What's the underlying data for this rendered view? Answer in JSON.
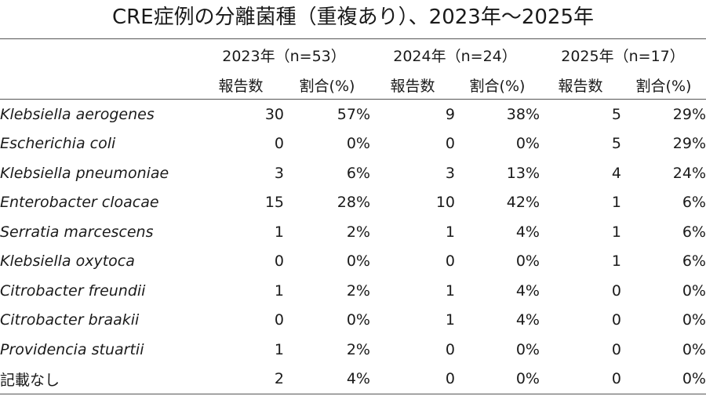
{
  "title": "CRE症例の分離菌種（重複あり）、2023年～2025年",
  "table": {
    "years": [
      {
        "label": "2023年（n=53）"
      },
      {
        "label": "2024年（n=24）"
      },
      {
        "label": "2025年（n=17）"
      }
    ],
    "subheaders": {
      "count": "報告数",
      "ratio": "割合(%)"
    },
    "rows": [
      {
        "organism": "Klebsiella aerogenes",
        "italic": true,
        "values": [
          "30",
          "57%",
          "9",
          "38%",
          "5",
          "29%"
        ]
      },
      {
        "organism": "Escherichia coli",
        "italic": true,
        "values": [
          "0",
          "0%",
          "0",
          "0%",
          "5",
          "29%"
        ]
      },
      {
        "organism": "Klebsiella pneumoniae",
        "italic": true,
        "values": [
          "3",
          "6%",
          "3",
          "13%",
          "4",
          "24%"
        ]
      },
      {
        "organism": "Enterobacter cloacae",
        "italic": true,
        "values": [
          "15",
          "28%",
          "10",
          "42%",
          "1",
          "6%"
        ]
      },
      {
        "organism": "Serratia marcescens",
        "italic": true,
        "values": [
          "1",
          "2%",
          "1",
          "4%",
          "1",
          "6%"
        ]
      },
      {
        "organism": "Klebsiella oxytoca",
        "italic": true,
        "values": [
          "0",
          "0%",
          "0",
          "0%",
          "1",
          "6%"
        ]
      },
      {
        "organism": "Citrobacter freundii",
        "italic": true,
        "values": [
          "1",
          "2%",
          "1",
          "4%",
          "0",
          "0%"
        ]
      },
      {
        "organism": "Citrobacter braakii",
        "italic": true,
        "values": [
          "0",
          "0%",
          "1",
          "4%",
          "0",
          "0%"
        ]
      },
      {
        "organism": "Providencia stuartii",
        "italic": true,
        "values": [
          "1",
          "2%",
          "0",
          "0%",
          "0",
          "0%"
        ]
      },
      {
        "organism": "記載なし",
        "italic": false,
        "values": [
          "2",
          "4%",
          "0",
          "0%",
          "0",
          "0%"
        ]
      }
    ]
  }
}
